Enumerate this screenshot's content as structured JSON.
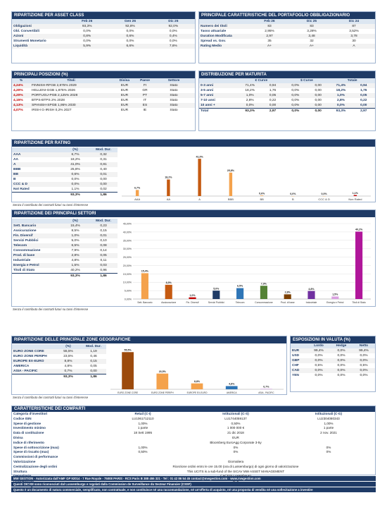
{
  "asset_class": {
    "title": "RIPARTIZIONE PER ASSET CLASS",
    "columns": [
      "",
      "Feb 26",
      "Gen 26",
      "Dic 25"
    ],
    "rows": [
      [
        "Obligazioni",
        "93,3%",
        "92,8%",
        "92,0%"
      ],
      [
        "Obl. Convertibili",
        "0,0%",
        "0,0%",
        "0,0%"
      ],
      [
        "Azioni",
        "0,8%",
        "0,6%",
        "0,4%"
      ],
      [
        "Strumenti Monetario",
        "0,0%",
        "0,0%",
        "0,0%"
      ],
      [
        "Liquidità",
        "5,9%",
        "6,6%",
        "7,6%"
      ]
    ]
  },
  "bond_portfolio": {
    "title": "PRINCIPALE CARATTERISTICHE DEL PORTAFOGLIO OBBLIGAZIONARIO",
    "columns": [
      "",
      "Feb 26",
      "Dic 25",
      "Dic 24"
    ],
    "rows": [
      [
        "Numero dei titoli",
        "83",
        "83",
        "87"
      ],
      [
        "Tasso attuariale",
        "2,95%",
        "3,28%",
        "3,52%"
      ],
      [
        "Duration Modificata",
        "2,97",
        "3,48",
        "3,78"
      ],
      [
        "Spread vs. Gov.",
        "35",
        "32",
        "30"
      ],
      [
        "Rating Medio",
        "A+",
        "A+",
        "A"
      ]
    ]
  },
  "positions": {
    "title": "PRINCIPALI POSIZIONI (%)",
    "columns": [
      "%",
      "Titoli",
      "Divisa",
      "Paese",
      "Settore"
    ],
    "rows": [
      [
        "4,24%",
        "FINNISH-RFGB 2,875% 2029",
        "EUR",
        "FI",
        "Stato"
      ],
      [
        "4,20%",
        "HELLENI-GGB 1,875% 2026",
        "EUR",
        "GR",
        "Stato"
      ],
      [
        "4,20%",
        "PORTUGU-PGB 2,125% 2028",
        "EUR",
        "PT",
        "Stato"
      ],
      [
        "4,15%",
        "BTPS-BTPS 2% 2028",
        "EUR",
        "IT",
        "Stato"
      ],
      [
        "4,13%",
        "SPANISH-SPGB 1,95% 2030",
        "EUR",
        "ES",
        "Stato"
      ],
      [
        "4,07%",
        "IRISH G-IRISH 0,2% 2027",
        "EUR",
        "IE",
        "Stato"
      ]
    ]
  },
  "maturity": {
    "title": "DISTRIBUZIONE PER MATURITA",
    "group_headers": [
      "€ Curve",
      "$ Curve",
      "Totale"
    ],
    "rows": [
      [
        "0-3 anni",
        "71,4%",
        "0,94",
        "0,0%",
        "0,00",
        "71,4%",
        "0,94"
      ],
      [
        "3-5 anni",
        "18,2%",
        "1,76",
        "0,0%",
        "0,00",
        "18,2%",
        "1,76"
      ],
      [
        "5-7 anni",
        "1,0%",
        "0,05",
        "0,0%",
        "0,00",
        "1,0%",
        "0,05"
      ],
      [
        "7-10 anni",
        "2,8%",
        "0,22",
        "0,0%",
        "0,00",
        "2,8%",
        "0,22"
      ],
      [
        "10 anni +",
        "0,0%",
        "0,00",
        "0,0%",
        "0,00",
        "0,0%",
        "0,00"
      ],
      [
        "Total",
        "93,3%",
        "2,97",
        "0,0%",
        "0,00",
        "93,3%",
        "2,97"
      ]
    ]
  },
  "rating": {
    "title": "RIPARTIZIONE PER RATING",
    "columns": [
      "",
      "(%)",
      "Mod. Dur."
    ],
    "rows": [
      [
        "AAA",
        "6,7%",
        "0,32"
      ],
      [
        "AA",
        "18,2%",
        "0,31"
      ],
      [
        "A",
        "41,0%",
        "0,81"
      ],
      [
        "BBB",
        "25,8%",
        "0,40"
      ],
      [
        "BB",
        "0,6%",
        "0,01"
      ],
      [
        "B",
        "0,0%",
        "0,00"
      ],
      [
        "CCC & D",
        "0,0%",
        "0,00"
      ],
      [
        "Not Rated",
        "1,1%",
        "0,02"
      ]
    ],
    "total": [
      "",
      "93,3%",
      "1,86"
    ],
    "note": "Senza il contributo dei contratti futuri su tassi d'interesse"
  },
  "sectors": {
    "title": "RIPARTIZIONE DEI PRINCIPALI SETTORI",
    "columns": [
      "",
      "(%)",
      "Mod. Dur."
    ],
    "rows": [
      [
        "Sett. Bancario",
        "15,4%",
        "0,23"
      ],
      [
        "Assicurazione",
        "8,5%",
        "0,15"
      ],
      [
        "Fin. Diversif",
        "1,0%",
        "0,01"
      ],
      [
        "Servizi Pubblici",
        "5,0%",
        "0,10"
      ],
      [
        "Telecom",
        "6,5%",
        "0,08"
      ],
      [
        "Consommazione",
        "7,9%",
        "0,14"
      ],
      [
        "Prod. di base",
        "2,8%",
        "0,05"
      ],
      [
        "Industriale",
        "4,8%",
        "0,11"
      ],
      [
        "Energia e Petrol",
        "1,5%",
        "0,03"
      ],
      [
        "Titoli di Stato",
        "40,2%",
        "0,96"
      ]
    ],
    "total": [
      "",
      "93,3%",
      "1,86"
    ],
    "note": "Senza il contributo dei contratti futuri su tassi d'interesse"
  },
  "geo": {
    "title": "RIPARTIZIONE DELLE PRINCIPALE ZONE GEOGRAFICHE",
    "columns": [
      "",
      "(%)",
      "Mod. Dur."
    ],
    "rows": [
      [
        "EURO ZONE CORE",
        "55,5%",
        "1,19"
      ],
      [
        "EURO ZONE PERIPH",
        "23,5%",
        "0,46"
      ],
      [
        "EUROPE EX-EURO",
        "8,8%",
        "0,15"
      ],
      [
        "AMERICA",
        "4,8%",
        "0,05"
      ],
      [
        "ASIA - PACIFIC",
        "0,7%",
        "0,00"
      ]
    ],
    "total": [
      "",
      "93,3%",
      "1,86"
    ],
    "note": "Senza il contributo dei contratti futuri su tassi d'interesse"
  },
  "currency": {
    "title": "ESPOSIZIONI IN VALUTA (%)",
    "columns": [
      "",
      "Lordo",
      "Hedge",
      "Netto"
    ],
    "rows": [
      [
        "EUR",
        "99,4%",
        "0,0%",
        "99,4%"
      ],
      [
        "USD",
        "0,0%",
        "0,0%",
        "0,0%"
      ],
      [
        "GBP",
        "0,0%",
        "0,0%",
        "0,0%"
      ],
      [
        "CHF",
        "0,5%",
        "0,0%",
        "0,5%"
      ],
      [
        "CAD",
        "0,0%",
        "0,0%",
        "0,0%"
      ],
      [
        "YEN",
        "0,0%",
        "0,0%",
        "0,0%"
      ]
    ]
  },
  "chart_data": [
    {
      "type": "bar",
      "categories": [
        "AAA",
        "AA",
        "A",
        "BBB",
        "BB",
        "B",
        "CCC & D",
        "Non Rated"
      ],
      "values": [
        6.7,
        18.2,
        41.0,
        25.8,
        0.6,
        0.0,
        0.0,
        1.1
      ],
      "labels": [
        "6,7%",
        "18,2%",
        "41,0%",
        "25,8%",
        "0,6%",
        "0,0%",
        "0,0%",
        "1,1%"
      ],
      "colors": [
        "#f4a24c",
        "#c55a11",
        "#c55a11",
        "#f4a24c",
        "#f4a24c",
        "#f4a24c",
        "#f4a24c",
        "#c00000"
      ],
      "ylim": [
        0,
        45
      ]
    },
    {
      "type": "bar",
      "categories": [
        "Sett. Bancario",
        "Assicurazione",
        "Fin. Diversif",
        "Servizi Pubblici",
        "Telecom",
        "Consommazione",
        "Prod. di base",
        "Industriale",
        "Energia e Petrol",
        "Titoli di Stato"
      ],
      "values": [
        15.4,
        8.5,
        1.0,
        5.0,
        6.5,
        7.9,
        2.8,
        4.8,
        1.5,
        40.2
      ],
      "labels": [
        "15,4%",
        "8,5%",
        "1,0%",
        "5,0%",
        "6,5%",
        "7,9%",
        "2,8%",
        "4,8%",
        "1,5%",
        "40,2%"
      ],
      "colors": [
        "#f4a24c",
        "#c55a11",
        "#c00000",
        "#1f3b66",
        "#2e75b6",
        "#548235",
        "#7b3f00",
        "#7030a0",
        "#d9a0e0",
        "#b0169a"
      ],
      "yticks": [
        "0,00%",
        "5,00%",
        "10,00%",
        "15,00%",
        "20,00%",
        "25,00%",
        "30,00%",
        "35,00%",
        "40,00%",
        "45,00%"
      ],
      "ylim": [
        0,
        45
      ]
    },
    {
      "type": "bar",
      "categories": [
        "EURO ZONE CORE",
        "EURO ZONE PERIPH",
        "EUROPE EX-EURO",
        "AMERICA",
        "ASIA - PACIFIC"
      ],
      "values": [
        55.5,
        23.5,
        8.8,
        4.8,
        0.7
      ],
      "labels": [
        "55,5%",
        "23,5%",
        "8,8%",
        "4,8%",
        "0,7%"
      ],
      "colors": [
        "#9c4a0c",
        "#f4a24c",
        "#f4a24c",
        "#2e75b6",
        "#cfa0e0"
      ],
      "ylim": [
        0,
        60
      ]
    }
  ],
  "chars": {
    "title": "CARATTERISTICHE DEI COMPARTI",
    "head": [
      "Categoria d'investitori",
      "Retail (C-I)",
      "Istituzionali (C-S)",
      "Istituzionali (C-G)"
    ],
    "rows": [
      [
        "Codice ISIN",
        "LU1061712110",
        "LU1744059137",
        "LU2304080343"
      ],
      [
        "Spese di gestione",
        "1,00%",
        "0,50%",
        "1,00%"
      ],
      [
        "Investimento minimo",
        "1 parte",
        "1 000 000 €",
        "1 parte"
      ],
      [
        "Data di costituzione",
        "18 Sett 1995",
        "21 dic 2018",
        "2 nov. 2021"
      ]
    ],
    "rows_span": [
      [
        "Divisa",
        "EUR"
      ],
      [
        "Indice di riferimento",
        "Bloomberg EuroAgg Corporate 3-5y"
      ]
    ],
    "rows2": [
      [
        "Spese di sottoscrizione (max)",
        "1,00%",
        "0%",
        "0%"
      ],
      [
        "Spese di riscatto (max)",
        "0,50%",
        "0%",
        "0%"
      ]
    ],
    "rows_span2": [
      [
        "Commissioni di performance",
        ""
      ],
      [
        "Valorizzazione",
        "Giornaliera"
      ],
      [
        "Centralizzazione degli ordini",
        "Ricezione ordini entro le ore 15.00 (ora di Lussemburgo) di ogni giorno di valorizzazione"
      ],
      [
        "Struttura",
        "This UCITS is a sub-fund of the SICAV MW ASSET MANAGEMENT"
      ],
      [
        "Depositario",
        "CACEIS Luxembourg"
      ],
      [
        "Regolamento",
        "G+2"
      ],
      [
        "Revisore legale dei conti",
        "Mazars"
      ]
    ]
  },
  "footer": {
    "line1": "MW GESTION - Autorizzata dall'AMF GP 92014 - 7 Rue Royale - 75008 PARIS - RCS Paris B 388 455 321 - Tel : 01 42 86 54 45 contact@mwgestion.com - www.mwgestion.com",
    "line2": "Questi OICVM sono riconosciuti dal Lussemburgo e regolati dalla Commission de Surveillance du Secteur Financier (CSSF)",
    "line3": "Questo è un documento di natura commerciale, semplificato, non contrattuale, e non costituisce né una raccomandazione, né un'offerta di acquisto, né una proposta di vendita né una sollecitazione a investire"
  }
}
